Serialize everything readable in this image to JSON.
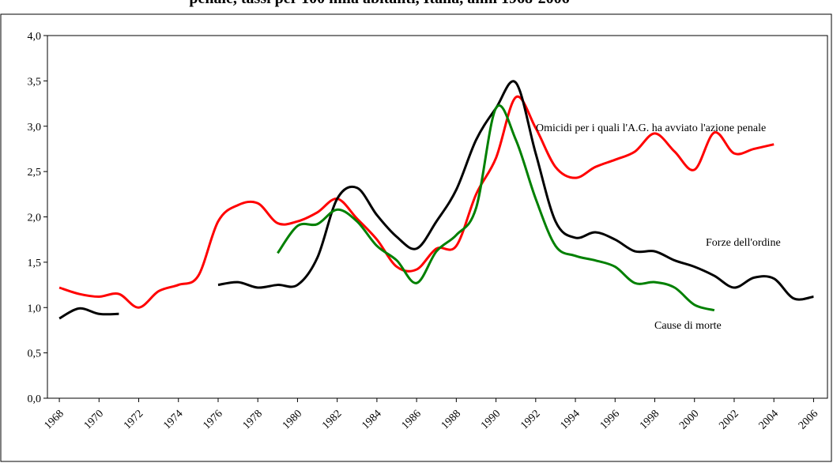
{
  "chart_data": {
    "type": "line",
    "title": "penale, tassi per 100 mila abitanti, Italia, anni 1968-2006",
    "x": [
      1968,
      1969,
      1970,
      1971,
      1972,
      1973,
      1974,
      1975,
      1976,
      1977,
      1978,
      1979,
      1980,
      1981,
      1982,
      1983,
      1984,
      1985,
      1986,
      1987,
      1988,
      1989,
      1990,
      1991,
      1992,
      1993,
      1994,
      1995,
      1996,
      1997,
      1998,
      1999,
      2000,
      2001,
      2002,
      2003,
      2004,
      2005,
      2006
    ],
    "series": [
      {
        "name": "Omicidi per i quali l'A.G. ha avviato l'azione penale",
        "color": "#ff0000",
        "values": [
          1.22,
          1.15,
          1.12,
          1.15,
          1.0,
          1.18,
          1.25,
          1.35,
          1.95,
          2.13,
          2.15,
          1.93,
          1.95,
          2.05,
          2.2,
          1.98,
          1.75,
          1.45,
          1.42,
          1.65,
          1.68,
          2.25,
          2.65,
          3.32,
          2.98,
          2.55,
          2.43,
          2.55,
          2.63,
          2.72,
          2.92,
          2.72,
          2.52,
          2.93,
          2.7,
          2.75,
          2.8,
          null,
          null
        ]
      },
      {
        "name": "Forze dell'ordine",
        "color": "#000000",
        "values": [
          0.88,
          0.99,
          0.93,
          0.93,
          null,
          null,
          null,
          null,
          1.25,
          1.28,
          1.22,
          1.25,
          1.25,
          1.55,
          2.2,
          2.32,
          2.02,
          1.78,
          1.65,
          1.95,
          2.3,
          2.85,
          3.2,
          3.48,
          2.7,
          1.95,
          1.77,
          1.83,
          1.75,
          1.62,
          1.62,
          1.52,
          1.45,
          1.35,
          1.22,
          1.33,
          1.32,
          1.1,
          1.12
        ]
      },
      {
        "name": "Cause di morte",
        "color": "#008000",
        "values": [
          null,
          null,
          null,
          null,
          null,
          null,
          null,
          null,
          null,
          null,
          null,
          1.6,
          1.9,
          1.92,
          2.08,
          1.95,
          1.68,
          1.52,
          1.27,
          1.62,
          1.8,
          2.1,
          3.2,
          2.85,
          2.2,
          1.68,
          1.57,
          1.52,
          1.45,
          1.27,
          1.28,
          1.22,
          1.03,
          0.97,
          null,
          null,
          null,
          null,
          null
        ]
      }
    ],
    "xlim": [
      1967.4,
      2006.7
    ],
    "xticks": [
      1968,
      1970,
      1972,
      1974,
      1976,
      1978,
      1980,
      1982,
      1984,
      1986,
      1988,
      1990,
      1992,
      1994,
      1996,
      1998,
      2000,
      2002,
      2004,
      2006
    ],
    "ylim": [
      0,
      4
    ],
    "yticks": [
      {
        "value": 0,
        "label": "0,0"
      },
      {
        "value": 0.5,
        "label": "0,5"
      },
      {
        "value": 1,
        "label": "1,0"
      },
      {
        "value": 1.5,
        "label": "1,5"
      },
      {
        "value": 2,
        "label": "2,0"
      },
      {
        "value": 2.5,
        "label": "2,5"
      },
      {
        "value": 3,
        "label": "3,0"
      },
      {
        "value": 3.5,
        "label": "3,5"
      },
      {
        "value": 4,
        "label": "4,0"
      }
    ]
  }
}
